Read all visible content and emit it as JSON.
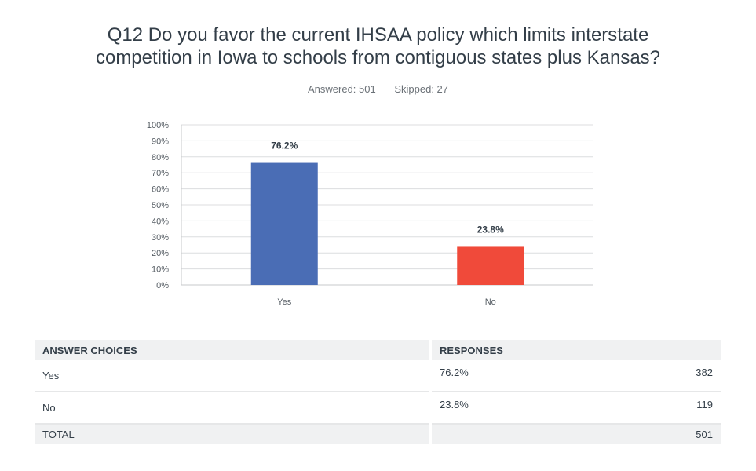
{
  "title_line1": "Q12 Do you favor the current IHSAA policy which limits interstate",
  "title_line2": "competition in Iowa to schools from contiguous states plus Kansas?",
  "answered": "Answered: 501",
  "skipped": "Skipped: 27",
  "chart_data": {
    "type": "bar",
    "categories": [
      "Yes",
      "No"
    ],
    "values": [
      76.2,
      23.8
    ],
    "value_labels": [
      "76.2%",
      "23.8%"
    ],
    "colors": [
      "#4a6db5",
      "#f04a3a"
    ],
    "ylim": [
      0,
      100
    ],
    "yticks": [
      "0%",
      "10%",
      "20%",
      "30%",
      "40%",
      "50%",
      "60%",
      "70%",
      "80%",
      "90%",
      "100%"
    ],
    "grid": true
  },
  "table": {
    "headers": [
      "ANSWER CHOICES",
      "RESPONSES"
    ],
    "rows": [
      {
        "choice": "Yes",
        "percent": "76.2%",
        "count": "382"
      },
      {
        "choice": "No",
        "percent": "23.8%",
        "count": "119"
      }
    ],
    "total_label": "TOTAL",
    "total_count": "501"
  }
}
